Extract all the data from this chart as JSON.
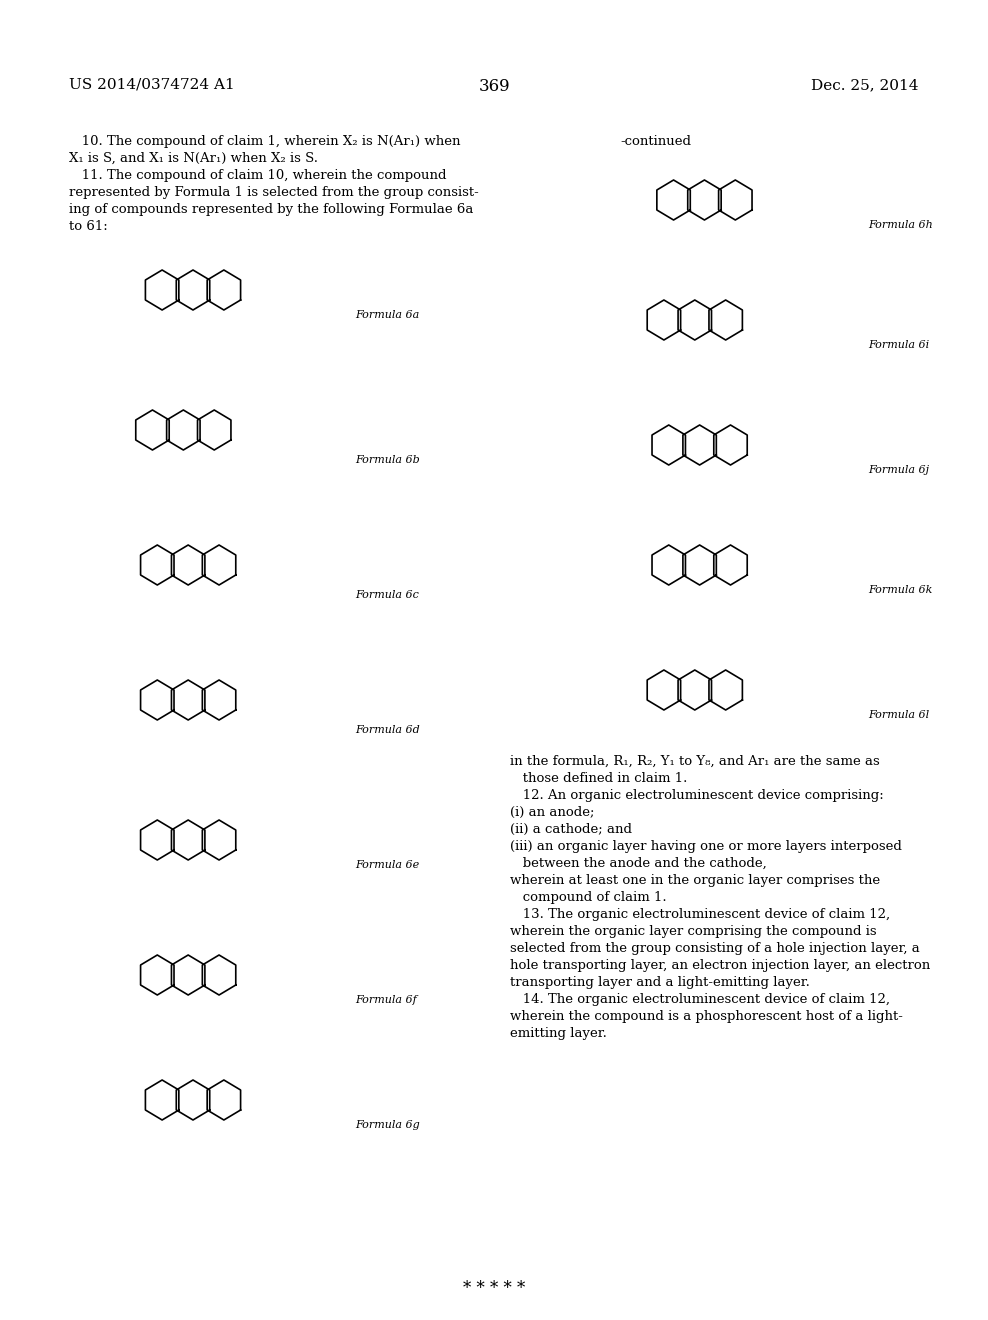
{
  "bg_color": "#ffffff",
  "header_left": "US 2014/0374724 A1",
  "header_right": "Dec. 25, 2014",
  "page_number": "369",
  "claim10_text": [
    "   10. The compound of claim 1, wherein X₂ is N(Ar₁) when",
    "X₁ is S, and X₁ is N(Ar₁) when X₂ is S.",
    "   11. The compound of claim 10, wherein the compound",
    "represented by Formula 1 is selected from the group consist-",
    "ing of compounds represented by the following Formulae 6a",
    "to 61:"
  ],
  "continued_label": "-continued",
  "formula_labels_left": [
    "Formula 6a",
    "Formula 6b",
    "Formula 6c",
    "Formula 6d",
    "Formula 6e",
    "Formula 6f",
    "Formula 6g"
  ],
  "formula_labels_right": [
    "Formula 6h",
    "Formula 6i",
    "Formula 6j",
    "Formula 6k",
    "Formula 6l"
  ],
  "right_text": [
    "in the formula, R₁, R₂, Y₁ to Y₈, and Ar₁ are the same as",
    "   those defined in claim 1.",
    "   12. An organic electroluminescent device comprising:",
    "(i) an anode;",
    "(ii) a cathode; and",
    "(iii) an organic layer having one or more layers interposed",
    "   between the anode and the cathode,",
    "wherein at least one in the organic layer comprises the",
    "   compound of claim 1.",
    "   13. The organic electroluminescent device of claim 12,",
    "wherein the organic layer comprising the compound is",
    "selected from the group consisting of a hole injection layer, a",
    "hole transporting layer, an electron injection layer, an electron",
    "transporting layer and a light-emitting layer.",
    "   14. The organic electroluminescent device of claim 12,",
    "wherein the compound is a phosphorescent host of a light-",
    "emitting layer."
  ],
  "asterisks": "* * * * *"
}
